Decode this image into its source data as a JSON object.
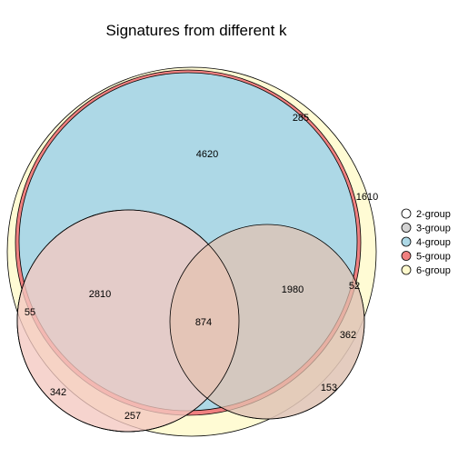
{
  "title": "Signatures from different k",
  "legend": {
    "placement": "right",
    "items": [
      {
        "label": "2-group",
        "color": "#ffffff"
      },
      {
        "label": "3-group",
        "color": "#d3d3d3"
      },
      {
        "label": "4-group",
        "color": "#add8e6"
      },
      {
        "label": "5-group",
        "color": "#f08080"
      },
      {
        "label": "6-group",
        "color": "#fffacd"
      }
    ]
  },
  "region_counts": {
    "only_4_group": "4620",
    "outer_ring_top": "285",
    "outer_ring_right": "1610",
    "left_overlap": "2810",
    "right_overlap": "1980",
    "center_overlap": "874",
    "left_edge": "55",
    "right_edge": "52",
    "right_lower": "362",
    "bottom_right": "153",
    "bottom_left": "342",
    "bottom_center": "257"
  }
}
